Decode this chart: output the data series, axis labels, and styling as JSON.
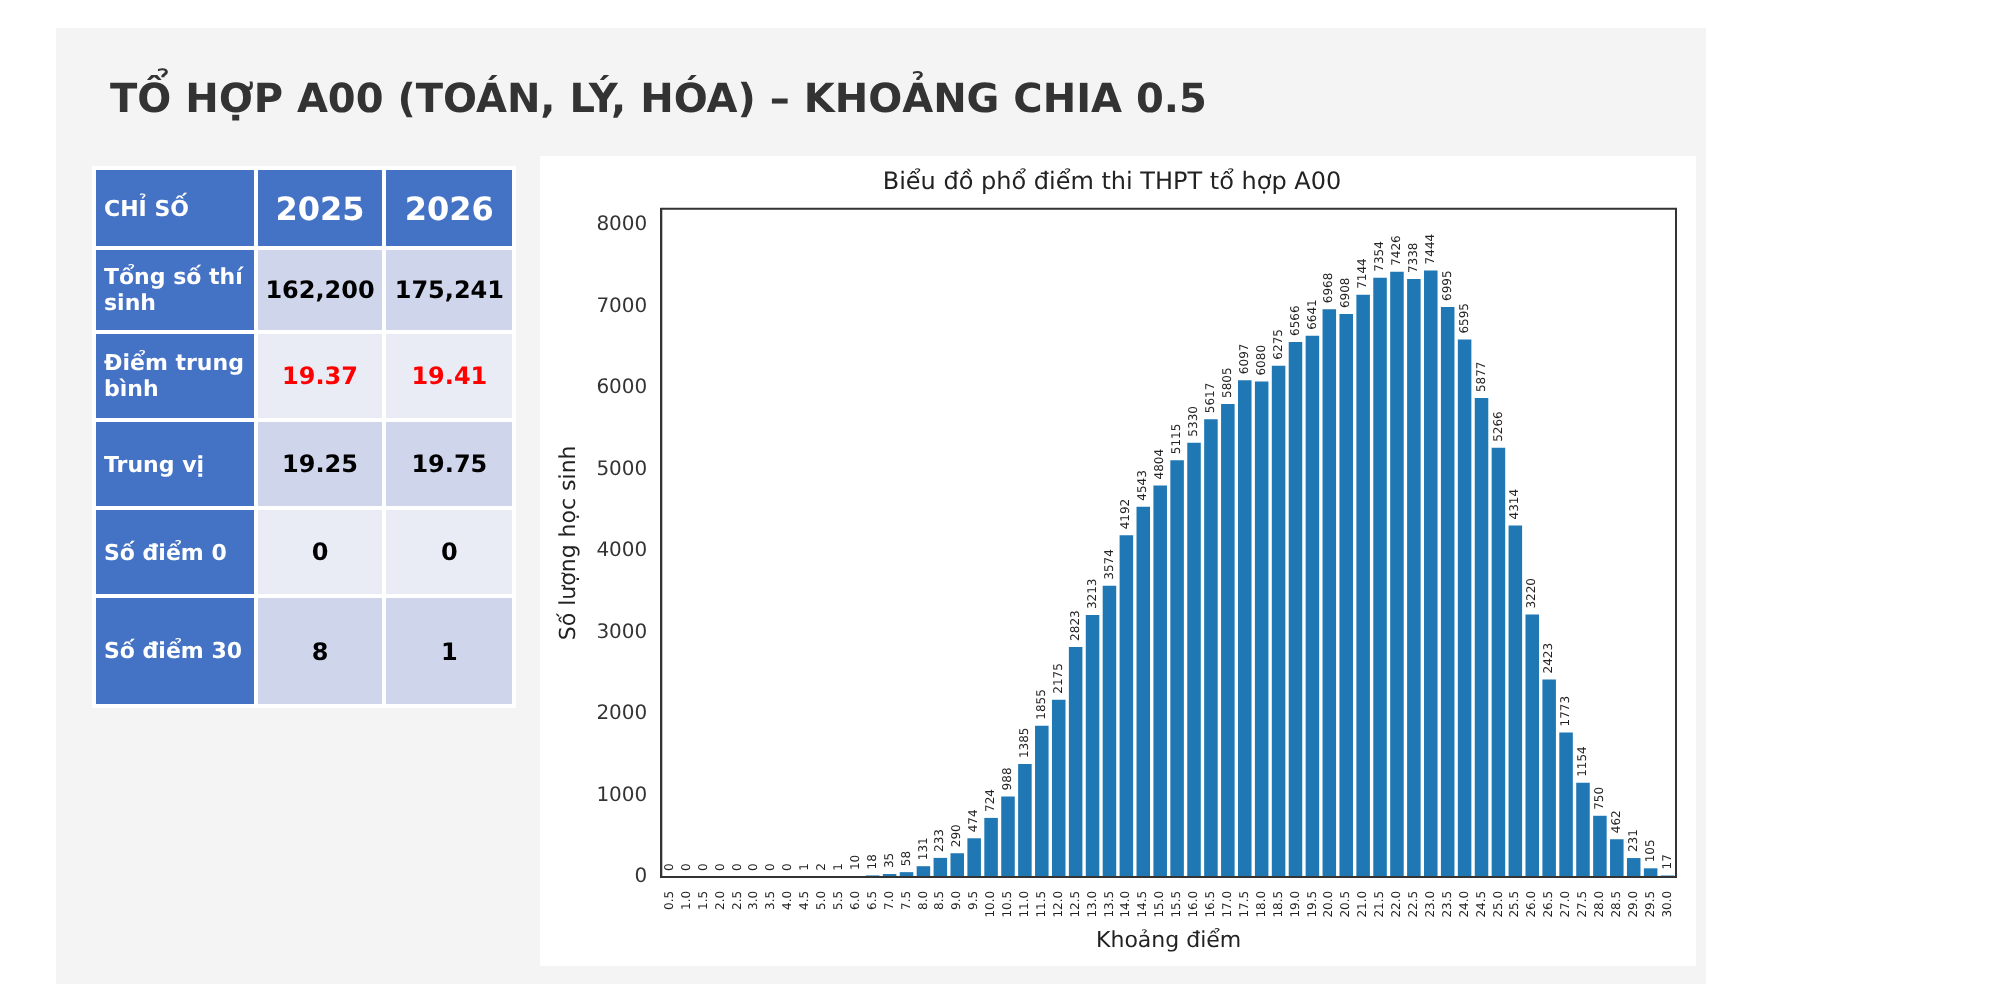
{
  "chart_data": [
    {
      "type": "other",
      "title": "TỔ HỢP A00 (TOÁN, LÝ, HÓA) – KHOẢNG CHIA 0.5",
      "annotations": [
        "CHỈ SỐ",
        "2025",
        "2026",
        "Tổng số thí sinh",
        "162,200",
        "175,241",
        "Điểm trung bình",
        "19.37",
        "19.41",
        "Trung vị",
        "19.25",
        "19.75",
        "Số điểm 0",
        "0",
        "0",
        "Số điểm 30",
        "8",
        "1"
      ]
    },
    {
      "type": "bar",
      "title": "Biểu đồ phổ điểm thi THPT tổ hợp A00",
      "xlabel": "Khoảng điểm",
      "ylabel": "Số lượng học sinh",
      "color": "#1f77b4",
      "data_labels": true,
      "grid": false,
      "legend": false,
      "categories": [
        "0.5",
        "1.0",
        "1.5",
        "2.0",
        "2.5",
        "3.0",
        "3.5",
        "4.0",
        "4.5",
        "5.0",
        "5.5",
        "6.0",
        "6.5",
        "7.0",
        "7.5",
        "8.0",
        "8.5",
        "9.0",
        "9.5",
        "10.0",
        "10.5",
        "11.0",
        "11.5",
        "12.0",
        "12.5",
        "13.0",
        "13.5",
        "14.0",
        "14.5",
        "15.0",
        "15.5",
        "16.0",
        "16.5",
        "17.0",
        "17.5",
        "18.0",
        "18.5",
        "19.0",
        "19.5",
        "20.0",
        "20.5",
        "21.0",
        "21.5",
        "22.0",
        "22.5",
        "23.0",
        "23.5",
        "24.0",
        "24.5",
        "25.0",
        "25.5",
        "26.0",
        "26.5",
        "27.0",
        "27.5",
        "28.0",
        "28.5",
        "29.0",
        "29.5",
        "30.0"
      ],
      "values": [
        0,
        0,
        0,
        0,
        0,
        0,
        0,
        0,
        1,
        2,
        1,
        10,
        18,
        35,
        58,
        131,
        233,
        290,
        474,
        724,
        988,
        1385,
        1855,
        2175,
        2823,
        3213,
        3574,
        4192,
        4543,
        4804,
        5115,
        5330,
        5617,
        5805,
        6097,
        6080,
        6275,
        6566,
        6641,
        6968,
        6908,
        7144,
        7354,
        7426,
        7338,
        7444,
        6995,
        6595,
        5877,
        5266,
        4314,
        3220,
        2423,
        1773,
        1154,
        750,
        462,
        231,
        105,
        17
      ],
      "ylim": [
        0,
        8200
      ],
      "yticks": [
        0,
        1000,
        2000,
        3000,
        4000,
        5000,
        6000,
        7000,
        8000
      ]
    }
  ]
}
